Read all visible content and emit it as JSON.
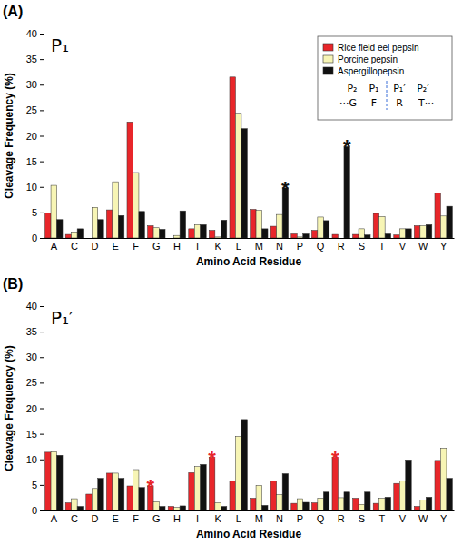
{
  "chart_data": [
    {
      "type": "bar",
      "panel": "(A)",
      "title": "P₁",
      "x_label": "Amino Acid Residue",
      "y_label": "Cleavage Frequency (%)",
      "categories": [
        "A",
        "C",
        "D",
        "E",
        "F",
        "G",
        "H",
        "I",
        "K",
        "L",
        "M",
        "N",
        "P",
        "Q",
        "R",
        "S",
        "T",
        "V",
        "W",
        "Y"
      ],
      "series": [
        {
          "name": "Rice field eel pepsin",
          "color": "#e8262a",
          "values": [
            4.9,
            0.7,
            0,
            5.5,
            22.7,
            2.4,
            0,
            1.8,
            1.5,
            31.5,
            5.6,
            2.3,
            0.8,
            1.5,
            0.7,
            0.7,
            4.8,
            0.6,
            2.4,
            8.8
          ]
        },
        {
          "name": "Porcine pepsin",
          "color": "#f7f5b5",
          "values": [
            10.3,
            1.2,
            6.0,
            11.0,
            12.8,
            2.0,
            0.5,
            2.6,
            0.2,
            24.4,
            5.4,
            4.6,
            0.2,
            4.1,
            0,
            1.8,
            4.2,
            1.8,
            2.4,
            4.3
          ]
        },
        {
          "name": "Aspergillopepsin",
          "color": "#111111",
          "values": [
            3.6,
            1.8,
            3.6,
            4.4,
            5.2,
            1.7,
            5.3,
            2.6,
            3.5,
            21.4,
            1.8,
            9.8,
            0.8,
            3.4,
            17.9,
            0.6,
            0.8,
            1.8,
            2.6,
            6.2
          ]
        }
      ],
      "ylim": [
        0,
        40
      ],
      "yticks": [
        0,
        5,
        10,
        15,
        20,
        25,
        30,
        35,
        40
      ],
      "grid": false,
      "legend": "top-right",
      "scheme": {
        "top": [
          "P₂",
          "P₁",
          "P₁′",
          "P₂′"
        ],
        "bottom": [
          "···G",
          "F",
          "R",
          "T···"
        ]
      },
      "annotations": [
        {
          "text": "*",
          "category": "N",
          "series": "Aspergillopepsin"
        },
        {
          "text": "*",
          "category": "R",
          "series": "Aspergillopepsin"
        }
      ]
    },
    {
      "type": "bar",
      "panel": "(B)",
      "title": "P₁′",
      "x_label": "Amino Acid Residue",
      "y_label": "Cleavage Frequency (%)",
      "categories": [
        "A",
        "C",
        "D",
        "E",
        "F",
        "G",
        "H",
        "I",
        "K",
        "L",
        "M",
        "N",
        "P",
        "Q",
        "R",
        "S",
        "T",
        "V",
        "W",
        "Y"
      ],
      "series": [
        {
          "name": "Rice field eel pepsin",
          "color": "#e8262a",
          "values": [
            11.4,
            1.5,
            3.2,
            7.3,
            4.8,
            4.8,
            0.8,
            7.4,
            10.4,
            5.8,
            2.4,
            5.8,
            1.4,
            1.5,
            10.4,
            2.4,
            1.4,
            5.3,
            0.8,
            9.8
          ]
        },
        {
          "name": "Porcine pepsin",
          "color": "#f7f5b5",
          "values": [
            11.5,
            2.3,
            4.3,
            7.3,
            8.0,
            1.7,
            0.6,
            8.6,
            1.5,
            14.5,
            4.9,
            3.1,
            2.3,
            2.4,
            2.5,
            1.2,
            2.4,
            5.8,
            2.0,
            12.2
          ]
        },
        {
          "name": "Aspergillopepsin",
          "color": "#111111",
          "values": [
            10.8,
            0.8,
            6.3,
            6.3,
            4.5,
            0.8,
            0.9,
            9.0,
            0.8,
            17.8,
            1.0,
            7.2,
            1.6,
            3.6,
            3.6,
            3.6,
            2.6,
            9.9,
            2.6,
            6.3
          ]
        }
      ],
      "ylim": [
        0,
        40
      ],
      "yticks": [
        0,
        5,
        10,
        15,
        20,
        25,
        30,
        35,
        40
      ],
      "grid": false,
      "annotations": [
        {
          "text": "*",
          "category": "G",
          "series": "Rice field eel pepsin"
        },
        {
          "text": "*",
          "category": "K",
          "series": "Rice field eel pepsin"
        },
        {
          "text": "*",
          "category": "R",
          "series": "Rice field eel pepsin"
        }
      ]
    }
  ]
}
